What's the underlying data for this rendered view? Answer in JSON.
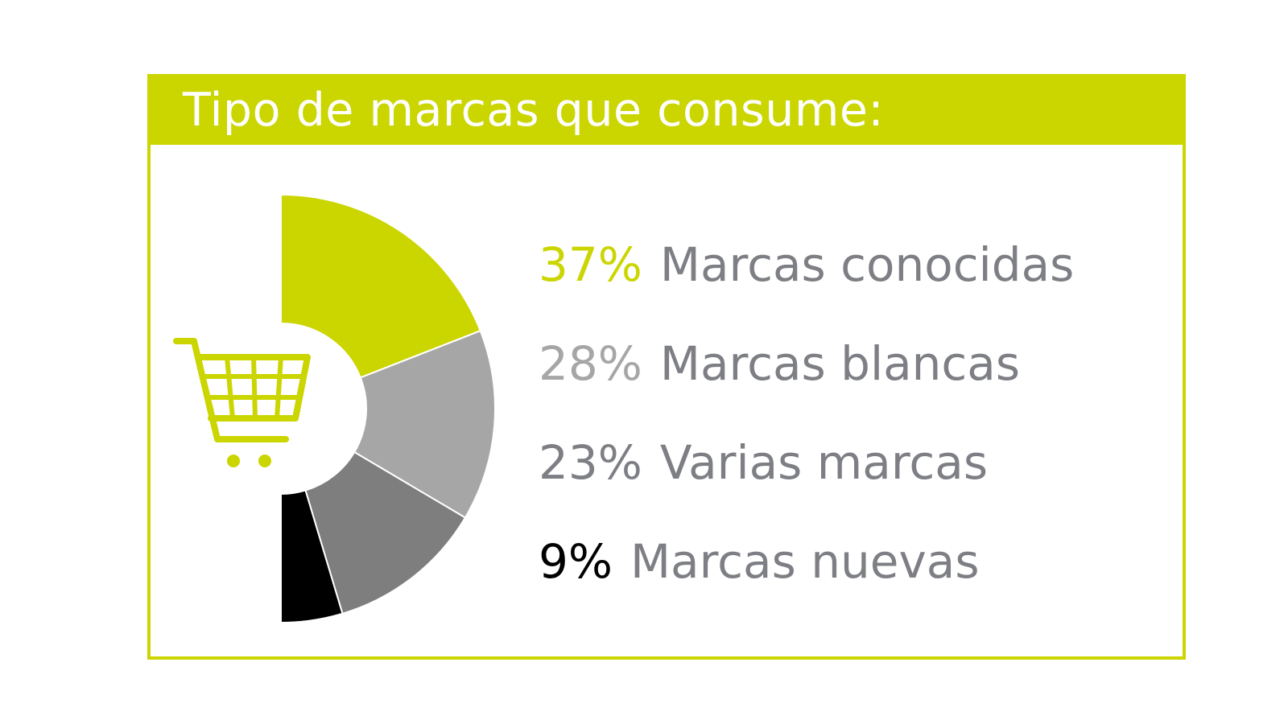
{
  "title": "Tipo de marcas que consume:",
  "colors": {
    "accent": "#cbd500",
    "label_gray": "#7d7f84",
    "background": "#ffffff"
  },
  "icons": [
    "shopping-cart-icon"
  ],
  "chart_data": {
    "type": "pie",
    "style": "half-donut",
    "title": "Tipo de marcas que consume:",
    "series": [
      {
        "name": "Marcas conocidas",
        "value": 37,
        "label": "37%",
        "color": "#cbd500",
        "label_color": "#cbd500"
      },
      {
        "name": "Marcas blancas",
        "value": 28,
        "label": "28%",
        "color": "#a6a6a6",
        "label_color": "#a6a6a6"
      },
      {
        "name": "Varias marcas",
        "value": 23,
        "label": "23%",
        "color": "#7e7e7e",
        "label_color": "#7d7f84"
      },
      {
        "name": "Marcas nuevas",
        "value": 9,
        "label": "9%",
        "color": "#000000",
        "label_color": "#000000"
      }
    ],
    "legend_position": "right"
  }
}
